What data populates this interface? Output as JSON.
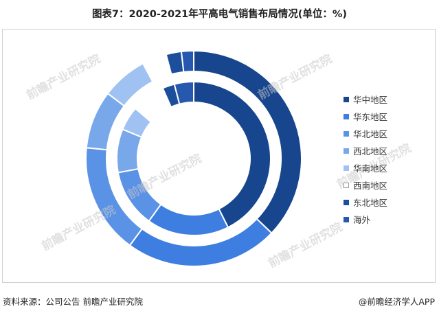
{
  "title": "图表7：2020-2021年平高电气销售布局情况(单位：%)",
  "source": "资料来源：公司公告 前瞻产业研究院",
  "brand": "@前瞻经济学人APP",
  "watermark_text": "前瞻产业研究院",
  "chart_data": {
    "type": "pie",
    "variant": "nested-donut",
    "title": "图表7：2020-2021年平高电气销售布局情况(单位：%)",
    "unit": "%",
    "legend_position": "right",
    "categories": [
      "华中地区",
      "华东地区",
      "华北地区",
      "西北地区",
      "华南地区",
      "西南地区",
      "东北地区",
      "海外"
    ],
    "colors": [
      "#17458e",
      "#3d7ee0",
      "#5a92e6",
      "#79a8ea",
      "#9fc2f3",
      "#ffffff",
      "#1d4e9c",
      "#2659ad"
    ],
    "series": [
      {
        "ring": "outer",
        "values": [
          40.5,
          25.0,
          18.0,
          9.5,
          7.5,
          4.0,
          2.5,
          2.0
        ]
      },
      {
        "ring": "inner",
        "values": [
          42.0,
          17.0,
          12.0,
          9.0,
          5.0,
          7.0,
          2.5,
          4.0
        ]
      }
    ]
  }
}
